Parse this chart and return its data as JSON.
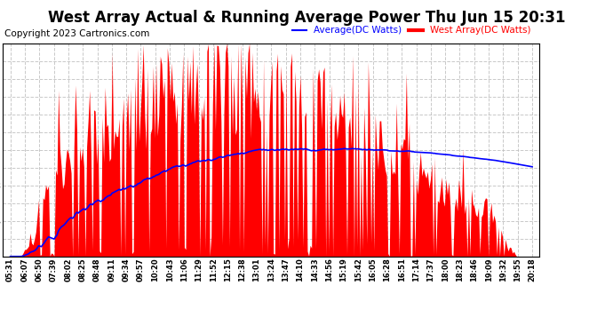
{
  "title": "West Array Actual & Running Average Power Thu Jun 15 20:31",
  "copyright": "Copyright 2023 Cartronics.com",
  "legend_avg": "Average(DC Watts)",
  "legend_west": "West Array(DC Watts)",
  "legend_avg_color": "blue",
  "legend_west_color": "red",
  "ymin": 0.0,
  "ymax": 1664.4,
  "ytick_step": 138.7,
  "background_color": "#ffffff",
  "grid_color": "#bbbbbb",
  "title_fontsize": 12,
  "copyright_fontsize": 7.5,
  "xtick_labels": [
    "05:31",
    "06:07",
    "06:50",
    "07:39",
    "08:02",
    "08:25",
    "08:48",
    "09:11",
    "09:34",
    "09:57",
    "10:20",
    "10:43",
    "11:06",
    "11:29",
    "11:52",
    "12:15",
    "12:38",
    "13:01",
    "13:24",
    "13:47",
    "14:10",
    "14:33",
    "14:56",
    "15:19",
    "15:42",
    "16:05",
    "16:28",
    "16:51",
    "17:14",
    "17:37",
    "18:00",
    "18:23",
    "18:46",
    "19:09",
    "19:32",
    "19:55",
    "20:18"
  ],
  "n_labels": 37,
  "n_data": 370
}
